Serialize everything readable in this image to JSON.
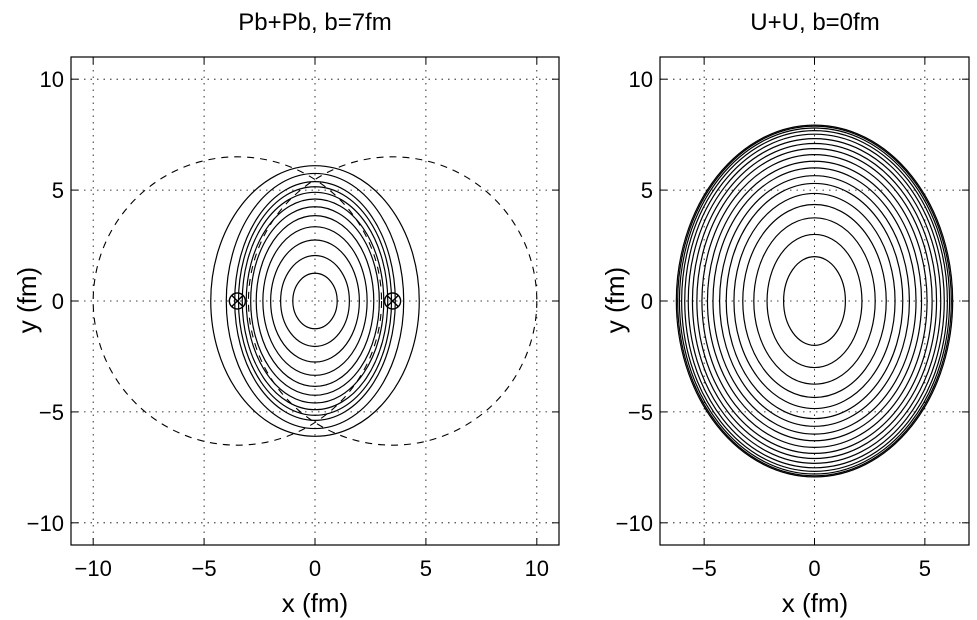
{
  "chart_data": [
    {
      "type": "contour",
      "title": "Pb+Pb, b=7fm",
      "xlabel": "x (fm)",
      "ylabel": "y (fm)",
      "xlim": [
        -11,
        11
      ],
      "ylim": [
        -11,
        11
      ],
      "xticks": [
        -10,
        -5,
        0,
        5,
        10
      ],
      "yticks": [
        -10,
        -5,
        0,
        5,
        10
      ],
      "xtick_labels": [
        "−10",
        "−5",
        "0",
        "5",
        "10"
      ],
      "ytick_labels": [
        "−10",
        "−5",
        "0",
        "5",
        "10"
      ],
      "grid": true,
      "contour_levels": [
        {
          "a": 1.0,
          "b": 1.25
        },
        {
          "a": 1.55,
          "b": 2.05
        },
        {
          "a": 2.0,
          "b": 2.75
        },
        {
          "a": 2.35,
          "b": 3.35
        },
        {
          "a": 2.65,
          "b": 3.85
        },
        {
          "a": 2.9,
          "b": 4.25
        },
        {
          "a": 3.1,
          "b": 4.6
        },
        {
          "a": 3.28,
          "b": 4.9
        },
        {
          "a": 3.45,
          "b": 5.15
        },
        {
          "a": 3.62,
          "b": 5.38
        },
        {
          "a": 4.0,
          "b": 5.75
        },
        {
          "a": 4.7,
          "b": 6.1
        }
      ],
      "nuclei_outlines": [
        {
          "cx": -3.5,
          "cy": 0,
          "r": 6.5
        },
        {
          "cx": 3.5,
          "cy": 0,
          "r": 6.5
        }
      ],
      "nucleus_centers": [
        {
          "x": -3.5,
          "y": 0
        },
        {
          "x": 3.5,
          "y": 0
        }
      ]
    },
    {
      "type": "contour",
      "title": "U+U, b=0fm",
      "xlabel": "x (fm)",
      "ylabel": "y (fm)",
      "xlim": [
        -7,
        7
      ],
      "ylim": [
        -11,
        11
      ],
      "xticks": [
        -5,
        0,
        5
      ],
      "yticks": [
        -10,
        -5,
        0,
        5,
        10
      ],
      "xtick_labels": [
        "−5",
        "0",
        "5"
      ],
      "ytick_labels": [
        "−10",
        "−5",
        "0",
        "5",
        "10"
      ],
      "grid": true,
      "contour_levels": [
        {
          "a": 1.4,
          "b": 2.0
        },
        {
          "a": 2.15,
          "b": 3.0
        },
        {
          "a": 2.75,
          "b": 3.75
        },
        {
          "a": 3.25,
          "b": 4.35
        },
        {
          "a": 3.65,
          "b": 4.85
        },
        {
          "a": 4.0,
          "b": 5.3
        },
        {
          "a": 4.3,
          "b": 5.65
        },
        {
          "a": 4.6,
          "b": 6.0
        },
        {
          "a": 4.85,
          "b": 6.3
        },
        {
          "a": 5.1,
          "b": 6.6
        },
        {
          "a": 5.33,
          "b": 6.87
        },
        {
          "a": 5.53,
          "b": 7.1
        },
        {
          "a": 5.72,
          "b": 7.32
        },
        {
          "a": 5.88,
          "b": 7.52
        },
        {
          "a": 6.02,
          "b": 7.68
        },
        {
          "a": 6.12,
          "b": 7.8
        },
        {
          "a": 6.2,
          "b": 7.88
        },
        {
          "a": 6.26,
          "b": 7.93
        }
      ]
    }
  ]
}
